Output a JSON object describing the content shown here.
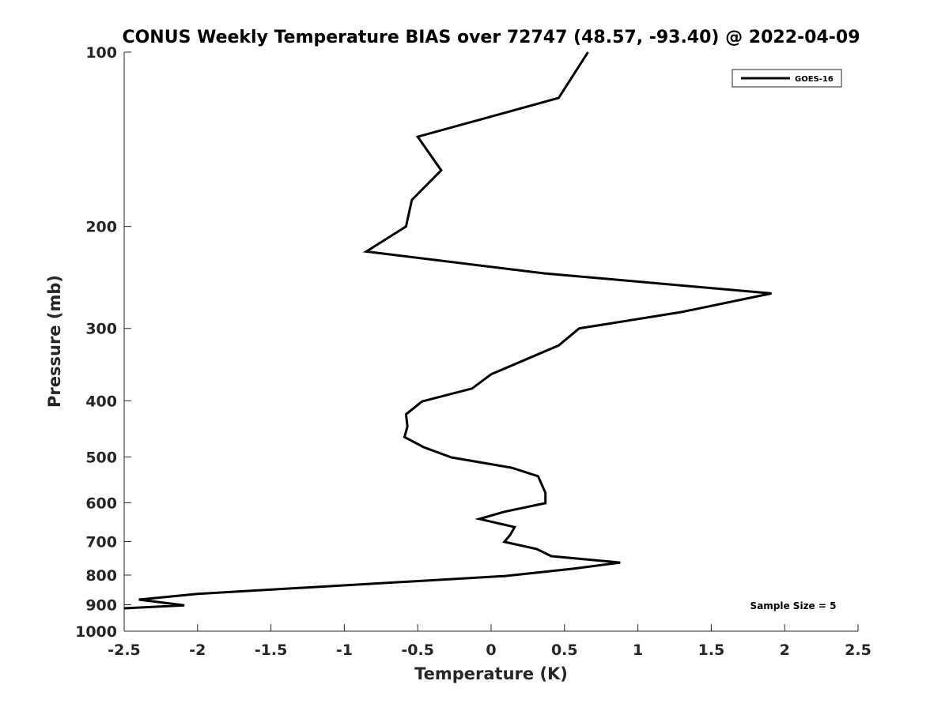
{
  "chart_data": {
    "type": "line",
    "title": "CONUS Weekly Temperature BIAS over 72747 (48.57, -93.40) @ 2022-04-09",
    "xlabel": "Temperature (K)",
    "ylabel": "Pressure (mb)",
    "xlim": [
      -2.5,
      2.5
    ],
    "ylim": [
      100,
      1000
    ],
    "yscale": "log",
    "yreversed": true,
    "xticks": [
      "-2.5",
      "-2",
      "-1.5",
      "-1",
      "-0.5",
      "0",
      "0.5",
      "1",
      "1.5",
      "2",
      "2.5"
    ],
    "xtick_values": [
      -2.5,
      -2,
      -1.5,
      -1,
      -0.5,
      0,
      0.5,
      1,
      1.5,
      2,
      2.5
    ],
    "yticks": [
      "100",
      "200",
      "300",
      "400",
      "500",
      "600",
      "700",
      "800",
      "900",
      "1000"
    ],
    "ytick_values": [
      100,
      200,
      300,
      400,
      500,
      600,
      700,
      800,
      900,
      1000
    ],
    "legend": {
      "entries": [
        "GOES-16"
      ],
      "placement": "top-right"
    },
    "annotation": "Sample Size = 5",
    "series": [
      {
        "name": "GOES-16",
        "color": "#000000",
        "points": [
          [
            0.66,
            100
          ],
          [
            0.46,
            120
          ],
          [
            -0.5,
            140
          ],
          [
            -0.34,
            160
          ],
          [
            -0.54,
            180
          ],
          [
            -0.58,
            200
          ],
          [
            -0.85,
            221
          ],
          [
            0.36,
            241
          ],
          [
            1.91,
            261
          ],
          [
            1.3,
            281
          ],
          [
            0.6,
            300
          ],
          [
            0.46,
            321
          ],
          [
            0.0,
            360
          ],
          [
            -0.13,
            381
          ],
          [
            -0.47,
            401
          ],
          [
            -0.58,
            422
          ],
          [
            -0.57,
            443
          ],
          [
            -0.59,
            462
          ],
          [
            -0.46,
            481
          ],
          [
            -0.27,
            501
          ],
          [
            0.14,
            522
          ],
          [
            0.32,
            540
          ],
          [
            0.37,
            577
          ],
          [
            0.37,
            601
          ],
          [
            0.09,
            622
          ],
          [
            -0.08,
            640
          ],
          [
            0.16,
            661
          ],
          [
            0.13,
            682
          ],
          [
            0.09,
            701
          ],
          [
            0.31,
            721
          ],
          [
            0.41,
            742
          ],
          [
            0.88,
            761
          ],
          [
            0.56,
            780
          ],
          [
            0.09,
            803
          ],
          [
            -2.0,
            862
          ],
          [
            -2.4,
            882
          ],
          [
            -2.09,
            902
          ],
          [
            -2.5,
            913
          ]
        ]
      }
    ]
  }
}
